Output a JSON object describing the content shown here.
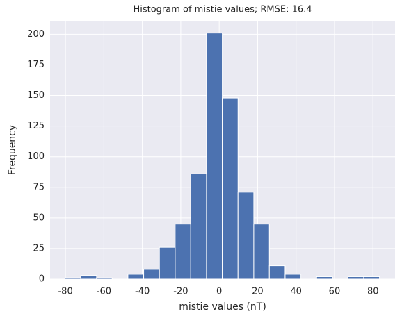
{
  "chart_data": {
    "type": "histogram",
    "title": "Histogram of mistie values; RMSE: 16.4",
    "x_label": "mistie values (nT)",
    "y_label": "Frequency",
    "bins": [
      -80.2,
      -72.0,
      -63.8,
      -55.7,
      -47.5,
      -39.3,
      -31.1,
      -22.9,
      -14.8,
      -6.6,
      1.6,
      9.8,
      18.0,
      26.1,
      34.3,
      42.5,
      50.7,
      58.9,
      67.0,
      75.2,
      83.4
    ],
    "values": [
      1,
      3,
      1,
      0,
      4,
      8,
      26,
      45,
      86,
      201,
      148,
      71,
      45,
      11,
      4,
      0,
      2,
      0,
      2,
      2
    ],
    "color": "#4c72b0",
    "xlim": [
      -88,
      91.5
    ],
    "ylim": [
      0,
      211
    ],
    "xticks": [
      -80,
      -60,
      -40,
      -20,
      0,
      20,
      40,
      60,
      80
    ],
    "yticks": [
      0,
      25,
      50,
      75,
      100,
      125,
      150,
      175,
      200
    ],
    "grid": true
  }
}
